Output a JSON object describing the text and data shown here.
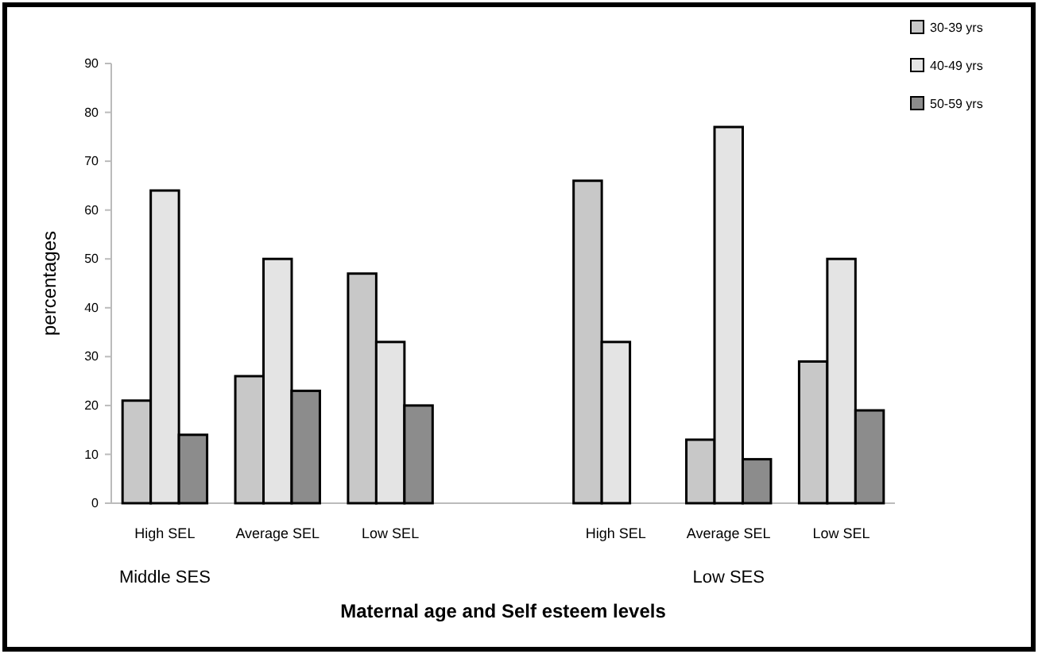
{
  "chart_data": {
    "type": "bar",
    "xlabel": "Maternal age and Self esteem levels",
    "ylabel": "percentages",
    "categories": [
      "High SEL",
      "Average SEL",
      "Low SEL",
      null,
      "High SEL",
      "Average SEL",
      "Low SEL"
    ],
    "series": [
      {
        "name": "30-39 yrs",
        "color": "#c8c8c8",
        "values": [
          21,
          26,
          47,
          null,
          66,
          13,
          29
        ]
      },
      {
        "name": "40-49 yrs",
        "color": "#e4e4e4",
        "values": [
          64,
          50,
          33,
          null,
          33,
          77,
          50
        ]
      },
      {
        "name": "50-59 yrs",
        "color": "#8c8c8c",
        "values": [
          14,
          23,
          20,
          null,
          null,
          9,
          19
        ]
      }
    ],
    "ylim": [
      0,
      90
    ],
    "yticks": [
      0,
      10,
      20,
      30,
      40,
      50,
      60,
      70,
      80,
      90
    ],
    "legend": "top right",
    "annotations": [
      "Middle SES",
      "Low SES"
    ]
  }
}
